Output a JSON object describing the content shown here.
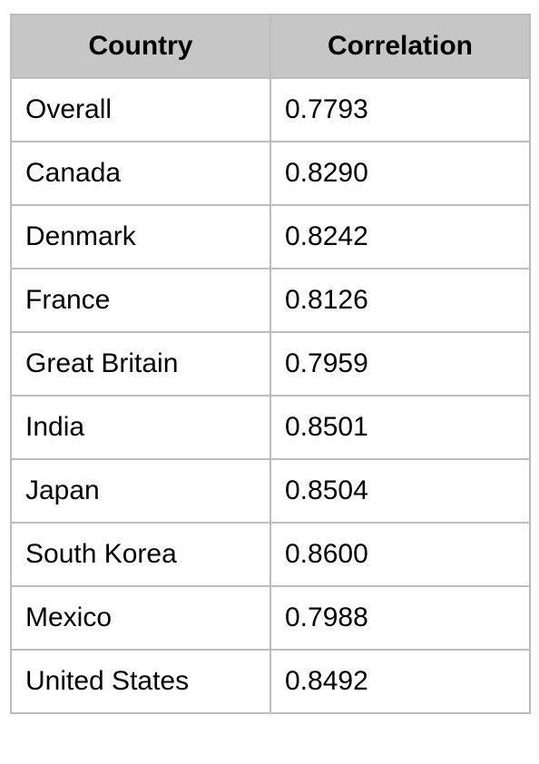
{
  "table": {
    "headers": [
      "Country",
      "Correlation"
    ],
    "rows": [
      [
        "Overall",
        "0.7793"
      ],
      [
        "Canada",
        "0.8290"
      ],
      [
        "Denmark",
        "0.8242"
      ],
      [
        "France",
        "0.8126"
      ],
      [
        "Great Britain",
        "0.7959"
      ],
      [
        "India",
        "0.8501"
      ],
      [
        "Japan",
        "0.8504"
      ],
      [
        "South Korea",
        "0.8600"
      ],
      [
        "Mexico",
        "0.7988"
      ],
      [
        "United States",
        "0.8492"
      ]
    ]
  }
}
